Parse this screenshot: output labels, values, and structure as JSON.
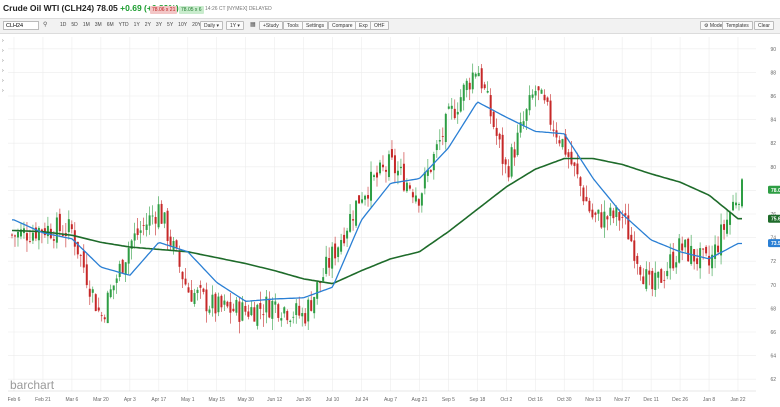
{
  "header": {
    "title": "Crude Oil WTI (CLH24)",
    "price": "78.05",
    "change": "+0.69 (+0.89%)",
    "bid": "78.06 x 21",
    "ask": "78.05 x 6",
    "meta": "14:26 CT [NYMEX] DELAYED"
  },
  "toolbar": {
    "symbol": "CLH24",
    "ranges": [
      "1D",
      "5D",
      "1M",
      "3M",
      "6M",
      "YTD",
      "1Y",
      "2Y",
      "3Y",
      "5Y",
      "10Y",
      "20Y",
      "MAX"
    ],
    "interval": "Daily",
    "period": "1Y",
    "buttons": {
      "study": "+Study",
      "tools": "Tools",
      "settings": "Settings",
      "compare": "Compare",
      "export": "Exp",
      "save": "OHF"
    },
    "mode": "Mode",
    "templates": "Templates",
    "clear": "Clear"
  },
  "watermark": "barchart",
  "colors": {
    "up": "#2e9e44",
    "down": "#c62828",
    "ma_short": "#2a7fd4",
    "ma_long": "#1e6b2a",
    "grid": "#ececec",
    "badge_green": "#2e9e44",
    "badge_blue": "#2a7fd4"
  },
  "chart_data": {
    "type": "candlestick",
    "title": "",
    "ylim": [
      61,
      91
    ],
    "y_ticks": [
      62,
      64,
      66,
      68,
      70,
      72,
      74,
      76,
      78,
      80,
      82,
      84,
      86,
      88,
      90
    ],
    "x_tick_labels": [
      "Feb 6",
      "Feb 21",
      "Mar 6",
      "Mar 20",
      "Apr 3",
      "Apr 17",
      "May 1",
      "May 15",
      "May 30",
      "Jun 12",
      "Jun 26",
      "Jul 10",
      "Jul 24",
      "Aug 7",
      "Aug 21",
      "Sep 5",
      "Sep 18",
      "Oct 2",
      "Oct 16",
      "Oct 30",
      "Nov 13",
      "Nov 27",
      "Dec 11",
      "Dec 26",
      "Jan 8",
      "Jan 22"
    ],
    "close_waypoints": [
      {
        "x": "Feb 6",
        "close": 74.2
      },
      {
        "x": "Feb 21",
        "close": 74.8
      },
      {
        "x": "Mar 6",
        "close": 74.6
      },
      {
        "x": "Mar 20",
        "close": 67.2
      },
      {
        "x": "Apr 3",
        "close": 73.5
      },
      {
        "x": "Apr 17",
        "close": 76.5
      },
      {
        "x": "May 1",
        "close": 69.6
      },
      {
        "x": "May 15",
        "close": 68.0
      },
      {
        "x": "May 30",
        "close": 67.8
      },
      {
        "x": "Jun 12",
        "close": 68.4
      },
      {
        "x": "Jun 26",
        "close": 67.3
      },
      {
        "x": "Jul 10",
        "close": 72.5
      },
      {
        "x": "Jul 24",
        "close": 77.8
      },
      {
        "x": "Aug 7",
        "close": 80.2
      },
      {
        "x": "Aug 21",
        "close": 77.6
      },
      {
        "x": "Sep 5",
        "close": 84.0
      },
      {
        "x": "Sep 18",
        "close": 88.6
      },
      {
        "x": "Oct 2",
        "close": 79.6
      },
      {
        "x": "Oct 16",
        "close": 86.5
      },
      {
        "x": "Oct 30",
        "close": 81.8
      },
      {
        "x": "Nov 13",
        "close": 75.6
      },
      {
        "x": "Nov 27",
        "close": 75.8
      },
      {
        "x": "Dec 11",
        "close": 69.4
      },
      {
        "x": "Dec 26",
        "close": 73.2
      },
      {
        "x": "Jan 8",
        "close": 71.6
      },
      {
        "x": "Jan 22",
        "close": 77.9
      }
    ],
    "ma_short_waypoints": [
      {
        "x": "Feb 6",
        "value": 75.5
      },
      {
        "x": "Feb 21",
        "value": 74.4
      },
      {
        "x": "Mar 6",
        "value": 73.9
      },
      {
        "x": "Mar 20",
        "value": 71.5
      },
      {
        "x": "Apr 3",
        "value": 70.8
      },
      {
        "x": "Apr 17",
        "value": 73.6
      },
      {
        "x": "May 1",
        "value": 72.8
      },
      {
        "x": "May 15",
        "value": 70.2
      },
      {
        "x": "May 30",
        "value": 68.6
      },
      {
        "x": "Jun 12",
        "value": 68.8
      },
      {
        "x": "Jun 26",
        "value": 68.9
      },
      {
        "x": "Jul 10",
        "value": 69.8
      },
      {
        "x": "Jul 24",
        "value": 75.5
      },
      {
        "x": "Aug 7",
        "value": 78.6
      },
      {
        "x": "Aug 21",
        "value": 79.0
      },
      {
        "x": "Sep 5",
        "value": 81.6
      },
      {
        "x": "Sep 18",
        "value": 85.5
      },
      {
        "x": "Oct 2",
        "value": 84.2
      },
      {
        "x": "Oct 16",
        "value": 83.0
      },
      {
        "x": "Oct 30",
        "value": 82.8
      },
      {
        "x": "Nov 13",
        "value": 79.0
      },
      {
        "x": "Nov 27",
        "value": 76.0
      },
      {
        "x": "Dec 11",
        "value": 73.8
      },
      {
        "x": "Dec 26",
        "value": 72.8
      },
      {
        "x": "Jan 8",
        "value": 72.2
      },
      {
        "x": "Jan 22",
        "value": 73.5
      }
    ],
    "ma_long_waypoints": [
      {
        "x": "Feb 6",
        "value": 74.6
      },
      {
        "x": "Feb 21",
        "value": 74.5
      },
      {
        "x": "Mar 6",
        "value": 74.2
      },
      {
        "x": "Mar 20",
        "value": 73.6
      },
      {
        "x": "Apr 3",
        "value": 73.2
      },
      {
        "x": "Apr 17",
        "value": 73.0
      },
      {
        "x": "May 1",
        "value": 72.8
      },
      {
        "x": "May 15",
        "value": 72.3
      },
      {
        "x": "May 30",
        "value": 71.8
      },
      {
        "x": "Jun 12",
        "value": 71.2
      },
      {
        "x": "Jun 26",
        "value": 70.5
      },
      {
        "x": "Jul 10",
        "value": 70.1
      },
      {
        "x": "Jul 24",
        "value": 71.2
      },
      {
        "x": "Aug 7",
        "value": 72.2
      },
      {
        "x": "Aug 21",
        "value": 72.8
      },
      {
        "x": "Sep 5",
        "value": 74.5
      },
      {
        "x": "Sep 18",
        "value": 76.4
      },
      {
        "x": "Oct 2",
        "value": 78.3
      },
      {
        "x": "Oct 16",
        "value": 79.8
      },
      {
        "x": "Oct 30",
        "value": 80.7
      },
      {
        "x": "Nov 13",
        "value": 80.7
      },
      {
        "x": "Nov 27",
        "value": 80.2
      },
      {
        "x": "Dec 11",
        "value": 79.4
      },
      {
        "x": "Dec 26",
        "value": 78.7
      },
      {
        "x": "Jan 8",
        "value": 77.6
      },
      {
        "x": "Jan 22",
        "value": 75.6
      }
    ],
    "last_values": {
      "close": "78.05",
      "ma_long": "75.60",
      "ma_short": "73.53"
    },
    "grid": true,
    "legend": "none"
  }
}
